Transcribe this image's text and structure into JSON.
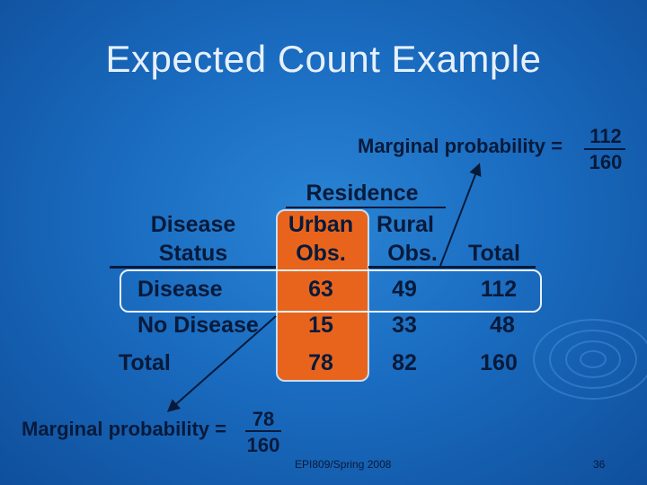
{
  "slide": {
    "title": "Expected Count Example",
    "footer": "EPI809/Spring 2008",
    "page_number": "36"
  },
  "table": {
    "group_header": "Residence",
    "row_header_line1": "Disease",
    "row_header_line2": "Status",
    "col_urban_line1": "Urban",
    "col_urban_line2": "Obs.",
    "col_rural_line1": "Rural",
    "col_rural_line2": "Obs.",
    "col_total": "Total",
    "rows": [
      {
        "label": "Disease",
        "urban": "63",
        "rural": "49",
        "total": "112"
      },
      {
        "label": "No Disease",
        "urban": "15",
        "rural": "33",
        "total": "48"
      },
      {
        "label": "Total",
        "urban": "78",
        "rural": "82",
        "total": "160"
      }
    ]
  },
  "annotations": {
    "top": {
      "label": "Marginal probability =",
      "numerator": "112",
      "denominator": "160"
    },
    "bottom": {
      "label": "Marginal probability =",
      "numerator": "78",
      "denominator": "160"
    }
  },
  "colors": {
    "highlight_column": "#e8641c",
    "text": "#081a3a",
    "title": "#e6f0fb",
    "background": "#1a6cc0"
  }
}
